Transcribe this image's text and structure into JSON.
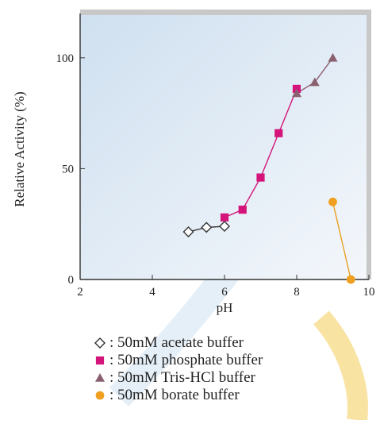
{
  "colors": {
    "acetate": "#333333",
    "phosphate": "#d4147a",
    "tris": "#8a6070",
    "borate": "#f0a020",
    "borate_line": "#e8a020",
    "plot_bg_top": "#cfe0f0",
    "plot_bg_bottom": "#f2f6fb",
    "frame": "#c8c8c8",
    "watermark_blue": "#2878c8",
    "watermark_gold": "#f2c230"
  },
  "chart_data": {
    "type": "line",
    "title": "",
    "xlabel": "pH",
    "ylabel": "Relative Activity (%)",
    "xlim": [
      2,
      10
    ],
    "ylim": [
      0,
      120
    ],
    "x_ticks": [
      2,
      4,
      6,
      8,
      10
    ],
    "y_ticks": [
      0,
      50,
      100
    ],
    "x_tick_labels": [
      "2",
      "4",
      "6",
      "8",
      "10"
    ],
    "y_tick_labels": [
      "0",
      "50",
      "100"
    ],
    "grid": false,
    "legend_placement": "bottom",
    "series": [
      {
        "name": "50mM acetate buffer",
        "legend_label": ": 50mM acetate buffer",
        "marker": "diamond-open",
        "color_key": "acetate",
        "x": [
          5.0,
          5.5,
          6.0
        ],
        "y": [
          21.5,
          23.5,
          24.0
        ]
      },
      {
        "name": "50mM phosphate buffer",
        "legend_label": ": 50mM phosphate buffer",
        "marker": "square",
        "color_key": "phosphate",
        "x": [
          6.0,
          6.5,
          7.0,
          7.5,
          8.0
        ],
        "y": [
          28.0,
          31.5,
          46.0,
          66.0,
          86.0
        ]
      },
      {
        "name": "50mM Tris-HCl buffer",
        "legend_label": ": 50mM Tris-HCl buffer",
        "marker": "triangle",
        "color_key": "tris",
        "x": [
          8.0,
          8.5,
          9.0
        ],
        "y": [
          84.0,
          89.0,
          100.0
        ]
      },
      {
        "name": "50mM borate buffer",
        "legend_label": ": 50mM borate buffer",
        "marker": "circle",
        "color_key": "borate",
        "x": [
          9.0,
          9.5
        ],
        "y": [
          35.0,
          0.0
        ]
      }
    ]
  }
}
